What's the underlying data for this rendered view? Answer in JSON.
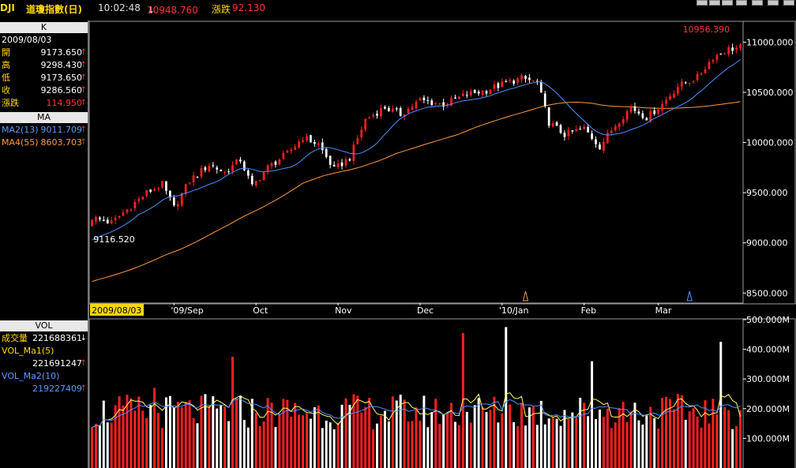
{
  "header": {
    "symbol": "DJI",
    "name": "道瓊指數(日)",
    "time": "10:02:48",
    "price_arrow": "↓",
    "price": "10948.760",
    "change_label": "漲跌",
    "change": "92.130"
  },
  "k_panel": {
    "title": "K",
    "date": "2009/08/03",
    "rows": [
      {
        "label": "開",
        "value": "9173.650"
      },
      {
        "label": "高",
        "value": "9298.430"
      },
      {
        "label": "低",
        "value": "9173.650"
      },
      {
        "label": "收",
        "value": "9286.560"
      },
      {
        "label": "漲跌",
        "value": "114.950"
      }
    ],
    "arrow": "↑"
  },
  "ma_panel": {
    "title": "MA",
    "rows": [
      {
        "label": "MA2(13)",
        "value": "9011.709"
      },
      {
        "label": "MA4(55)",
        "value": "8603.703"
      }
    ],
    "arrow": "↑"
  },
  "vol_panel": {
    "title": "VOL",
    "rows": [
      {
        "label": "成交量",
        "value": "221688361",
        "arrow": "↓"
      },
      {
        "label": "VOL_Ma1(5)",
        "value": "221691247",
        "arrow": "↑"
      },
      {
        "label": "VOL_Ma2(10)",
        "value": "219227409",
        "arrow": "↑"
      }
    ]
  },
  "colors": {
    "up": "#ff2020",
    "down": "#ffffff",
    "ma13": "#4a90ff",
    "ma55": "#ff9a3c",
    "vol_ma5": "#ffff66",
    "vol_ma10": "#4a90ff",
    "panel_label": "#ffd700",
    "axis": "#ffffff"
  },
  "chart_data": [
    {
      "type": "candlestick",
      "y_ticks": [
        "11000.000",
        "10500.000",
        "10000.000",
        "9500.000",
        "9000.000",
        "8500.000"
      ],
      "y_tick_values": [
        11000,
        10500,
        10000,
        9500,
        9000,
        8500
      ],
      "ylim": [
        8400,
        11200
      ],
      "x_ticks": [
        "2009/08/03",
        "'09/Sep",
        "Oct",
        "Nov",
        "Dec",
        "'10/Jan",
        "Feb",
        "Mar"
      ],
      "x_tick_index": [
        0,
        21,
        42,
        63,
        84,
        105,
        126,
        145
      ],
      "n_days": 167,
      "annotations": [
        {
          "text": "10956.390",
          "kind": "high",
          "index": 163,
          "value": 10956.39
        },
        {
          "text": "9116.520",
          "kind": "low",
          "index": 4,
          "value": 9116.52
        }
      ],
      "markers": [
        {
          "color": "orange",
          "index": 111
        },
        {
          "color": "blue",
          "index": 153
        }
      ],
      "anchors": [
        [
          0,
          9250
        ],
        [
          5,
          9200
        ],
        [
          8,
          9300
        ],
        [
          14,
          9500
        ],
        [
          18,
          9580
        ],
        [
          21,
          9350
        ],
        [
          25,
          9620
        ],
        [
          30,
          9780
        ],
        [
          34,
          9700
        ],
        [
          38,
          9830
        ],
        [
          41,
          9560
        ],
        [
          45,
          9750
        ],
        [
          50,
          9890
        ],
        [
          54,
          10050
        ],
        [
          58,
          9980
        ],
        [
          62,
          9730
        ],
        [
          66,
          9850
        ],
        [
          70,
          10230
        ],
        [
          75,
          10350
        ],
        [
          79,
          10280
        ],
        [
          84,
          10420
        ],
        [
          90,
          10380
        ],
        [
          96,
          10480
        ],
        [
          101,
          10520
        ],
        [
          105,
          10580
        ],
        [
          110,
          10640
        ],
        [
          114,
          10600
        ],
        [
          117,
          10200
        ],
        [
          121,
          10080
        ],
        [
          126,
          10140
        ],
        [
          130,
          9960
        ],
        [
          134,
          10180
        ],
        [
          138,
          10350
        ],
        [
          142,
          10250
        ],
        [
          146,
          10380
        ],
        [
          150,
          10560
        ],
        [
          155,
          10650
        ],
        [
          159,
          10850
        ],
        [
          163,
          10930
        ],
        [
          166,
          10948
        ]
      ],
      "series": [
        {
          "name": "MA2(13)",
          "last_value": 9011.709
        },
        {
          "name": "MA4(55)",
          "last_value": 8603.703
        }
      ]
    },
    {
      "type": "bar",
      "y_ticks": [
        "500.000M",
        "400.000M",
        "300.000M",
        "200.000M",
        "100.000M"
      ],
      "y_tick_values": [
        500,
        400,
        300,
        200,
        100
      ],
      "ylim": [
        0,
        500
      ],
      "unit": "M",
      "spikes": [
        {
          "index": 36,
          "value": 375
        },
        {
          "index": 16,
          "value": 270
        },
        {
          "index": 95,
          "value": 455
        },
        {
          "index": 106,
          "value": 475
        },
        {
          "index": 128,
          "value": 360
        },
        {
          "index": 161,
          "value": 425
        }
      ],
      "series": [
        {
          "name": "成交量",
          "last_value": 221688361
        },
        {
          "name": "VOL_Ma1(5)",
          "last_value": 221691247
        },
        {
          "name": "VOL_Ma2(10)",
          "last_value": 219227409
        }
      ]
    }
  ]
}
